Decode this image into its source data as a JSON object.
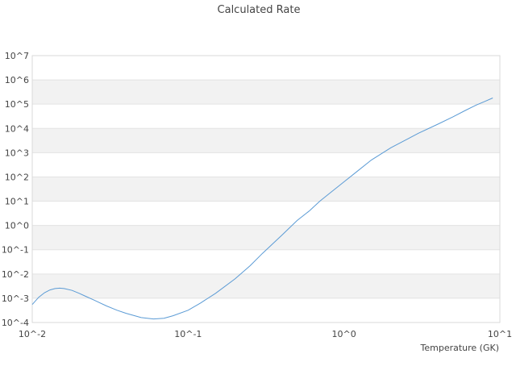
{
  "chart_data": {
    "type": "line",
    "title": "Calculated Rate",
    "xlabel": "Temperature (GK)",
    "ylabel": "",
    "x_scale": "log",
    "y_scale": "log",
    "xlim": [
      0.01,
      10
    ],
    "ylim": [
      0.0001,
      10000000
    ],
    "x_tick_labels": [
      "10^-2",
      "10^-1",
      "10^0",
      "10^1"
    ],
    "y_tick_labels": [
      "10^-4",
      "10^-3",
      "10^-2",
      "10^-1",
      "10^0",
      "10^1",
      "10^2",
      "10^3",
      "10^4",
      "10^5",
      "10^6",
      "10^7"
    ],
    "grid": "alternating horizontal bands",
    "line_color": "#5b9bd5",
    "band_color": "#f2f2f2",
    "series": [
      {
        "x": [
          0.01,
          0.011,
          0.012,
          0.013,
          0.014,
          0.015,
          0.016,
          0.018,
          0.02,
          0.022,
          0.025,
          0.03,
          0.035,
          0.04,
          0.05,
          0.06,
          0.07,
          0.08,
          0.1,
          0.12,
          0.15,
          0.2,
          0.25,
          0.3,
          0.4,
          0.5,
          0.6,
          0.7,
          0.8,
          1.0,
          1.2,
          1.5,
          2.0,
          3.0,
          4.0,
          5.0,
          6.0,
          7.0,
          8.0,
          9.0
        ],
        "y": [
          0.00055,
          0.0011,
          0.0017,
          0.0022,
          0.0025,
          0.0026,
          0.0025,
          0.0021,
          0.0016,
          0.0012,
          0.00083,
          0.00048,
          0.00032,
          0.00024,
          0.00016,
          0.00014,
          0.00015,
          0.00019,
          0.00032,
          0.00063,
          0.0016,
          0.0063,
          0.022,
          0.071,
          0.4,
          1.6,
          4.0,
          10,
          20,
          63,
          160,
          500,
          1600,
          6300,
          15000,
          30000,
          55000,
          90000,
          130000,
          180000
        ]
      }
    ]
  }
}
